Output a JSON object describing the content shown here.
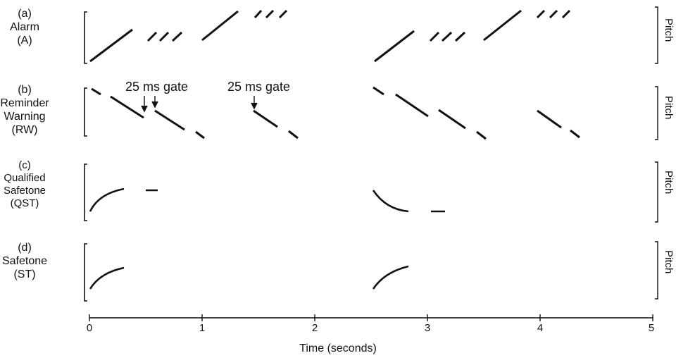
{
  "panels": [
    {
      "letter": "(a)",
      "lines": [
        "Alarm",
        "(A)"
      ]
    },
    {
      "letter": "(b)",
      "lines": [
        "Reminder",
        "Warning",
        "(RW)"
      ]
    },
    {
      "letter": "(c)",
      "lines": [
        "Qualified",
        "Safetone",
        "(QST)"
      ]
    },
    {
      "letter": "(d)",
      "lines": [
        "Safetone",
        "(ST)"
      ]
    }
  ],
  "pitch_label": "Pitch",
  "gate_labels": [
    "25 ms gate",
    "25 ms gate"
  ],
  "x_axis": {
    "title": "Time (seconds)",
    "ticks": [
      "0",
      "1",
      "2",
      "3",
      "4",
      "5"
    ],
    "range": [
      0,
      5
    ]
  }
}
